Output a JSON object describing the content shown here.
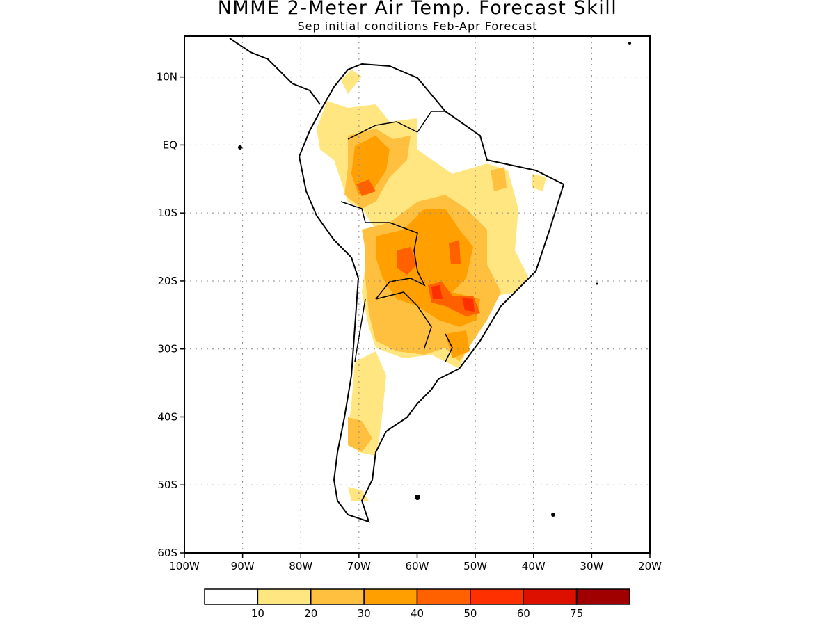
{
  "title": "NMME 2-Meter Air Temp. Forecast Skill",
  "subtitle": "Sep initial conditions  Feb-Apr Forecast",
  "lat_ticks": [
    {
      "label": "10N",
      "lat": 10
    },
    {
      "label": "EQ",
      "lat": 0
    },
    {
      "label": "10S",
      "lat": -10
    },
    {
      "label": "20S",
      "lat": -20
    },
    {
      "label": "30S",
      "lat": -30
    },
    {
      "label": "40S",
      "lat": -40
    },
    {
      "label": "50S",
      "lat": -50
    },
    {
      "label": "60S",
      "lat": -60
    }
  ],
  "lon_ticks": [
    {
      "label": "100W",
      "lon": -100
    },
    {
      "label": "90W",
      "lon": -90
    },
    {
      "label": "80W",
      "lon": -80
    },
    {
      "label": "70W",
      "lon": -70
    },
    {
      "label": "60W",
      "lon": -60
    },
    {
      "label": "50W",
      "lon": -50
    },
    {
      "label": "40W",
      "lon": -40
    },
    {
      "label": "30W",
      "lon": -30
    },
    {
      "label": "20W",
      "lon": -20
    }
  ],
  "map_extent": {
    "lon": [
      -100,
      -20
    ],
    "lat": [
      -60,
      16
    ]
  },
  "legend": {
    "bins": [
      {
        "color": "#ffffff"
      },
      {
        "color": "#ffe680"
      },
      {
        "color": "#ffc040"
      },
      {
        "color": "#ffa000"
      },
      {
        "color": "#ff6000"
      },
      {
        "color": "#ff3000"
      },
      {
        "color": "#dd1000"
      },
      {
        "color": "#a00000"
      }
    ],
    "labels": [
      "10",
      "20",
      "30",
      "40",
      "50",
      "60",
      "75"
    ]
  }
}
